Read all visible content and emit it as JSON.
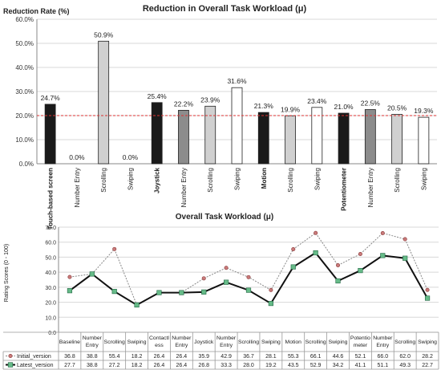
{
  "chart_data": [
    {
      "type": "bar",
      "title": "Reduction in Overall Task Workload (μ)",
      "ylabel": "Reduction Rate (%)",
      "xlabel": "",
      "ylim": [
        0,
        60
      ],
      "yticks": [
        "0.0%",
        "10.0%",
        "20.0%",
        "30.0%",
        "40.0%",
        "50.0%",
        "60.0%"
      ],
      "reference_line": 20,
      "categories": [
        "Touch-based screen",
        "Number Entry",
        "Scrolling",
        "Swiping",
        "Joystick",
        "Number Entry",
        "Scrolling",
        "Swiping",
        "Motion",
        "Scrolling",
        "Swiping",
        "Potentiometer",
        "Number Entry",
        "Scrolling",
        "Swiping"
      ],
      "bold_categories": [
        0,
        4,
        8,
        11
      ],
      "values": [
        24.7,
        0.0,
        50.9,
        0.0,
        25.4,
        22.2,
        23.9,
        31.6,
        21.3,
        19.9,
        23.4,
        21.0,
        22.5,
        20.5,
        19.3
      ],
      "value_labels": [
        "24.7%",
        "0.0%",
        "50.9%",
        "0.0%",
        "25.4%",
        "22.2%",
        "23.9%",
        "31.6%",
        "21.3%",
        "19.9%",
        "23.4%",
        "21.0%",
        "22.5%",
        "20.5%",
        "19.3%"
      ],
      "bar_colors": [
        "#1a1a1a",
        "#8c8c8c",
        "#d0d0d0",
        "#ffffff",
        "#1a1a1a",
        "#8c8c8c",
        "#d0d0d0",
        "#ffffff",
        "#1a1a1a",
        "#d0d0d0",
        "#ffffff",
        "#1a1a1a",
        "#8c8c8c",
        "#d0d0d0",
        "#ffffff"
      ],
      "grid": true
    },
    {
      "type": "line",
      "title": "Overall Task Workload (μ)",
      "ylabel": "Rating Scores (0 - 100)",
      "xlabel": "",
      "ylim": [
        0,
        70
      ],
      "yticks": [
        "0.0",
        "10.0",
        "20.0",
        "30.0",
        "40.0",
        "50.0",
        "60.0",
        "70.0"
      ],
      "categories": [
        "Baseline",
        "Number Entry",
        "Scrolling",
        "Swiping",
        "Contactless",
        "Number Entry",
        "Joystick",
        "Number Entry",
        "Scrolling",
        "Swiping",
        "Motion",
        "Scrolling",
        "Swiping",
        "Potentiometer",
        "Number Entry",
        "Scrolling",
        "Swiping"
      ],
      "category_display": [
        "Baseline",
        "Number|Entry",
        "Scrolling",
        "Swiping",
        "Contactl|ess",
        "Number|Entry",
        "Joystick",
        "Number|Entry",
        "Scrolling",
        "Swiping",
        "Motion",
        "Scrolling",
        "Swiping",
        "Potentio|meter",
        "Number|Entry",
        "Scrolling",
        "Swiping"
      ],
      "series": [
        {
          "name": "Initial_version",
          "values": [
            36.8,
            38.8,
            55.4,
            18.2,
            26.4,
            26.4,
            35.9,
            42.9,
            36.7,
            28.1,
            55.3,
            66.1,
            44.6,
            52.1,
            66.0,
            62.0,
            28.2
          ],
          "color": "#888888",
          "marker_color": "#c97a7a"
        },
        {
          "name": "Latest_version",
          "values": [
            27.7,
            38.8,
            27.2,
            18.2,
            26.4,
            26.4,
            26.8,
            33.3,
            28.0,
            19.2,
            43.5,
            52.9,
            34.2,
            41.1,
            51.1,
            49.3,
            22.7
          ],
          "color": "#111111",
          "marker_color": "#66bb88"
        }
      ],
      "grid": true,
      "legend": "bottom-table"
    }
  ]
}
